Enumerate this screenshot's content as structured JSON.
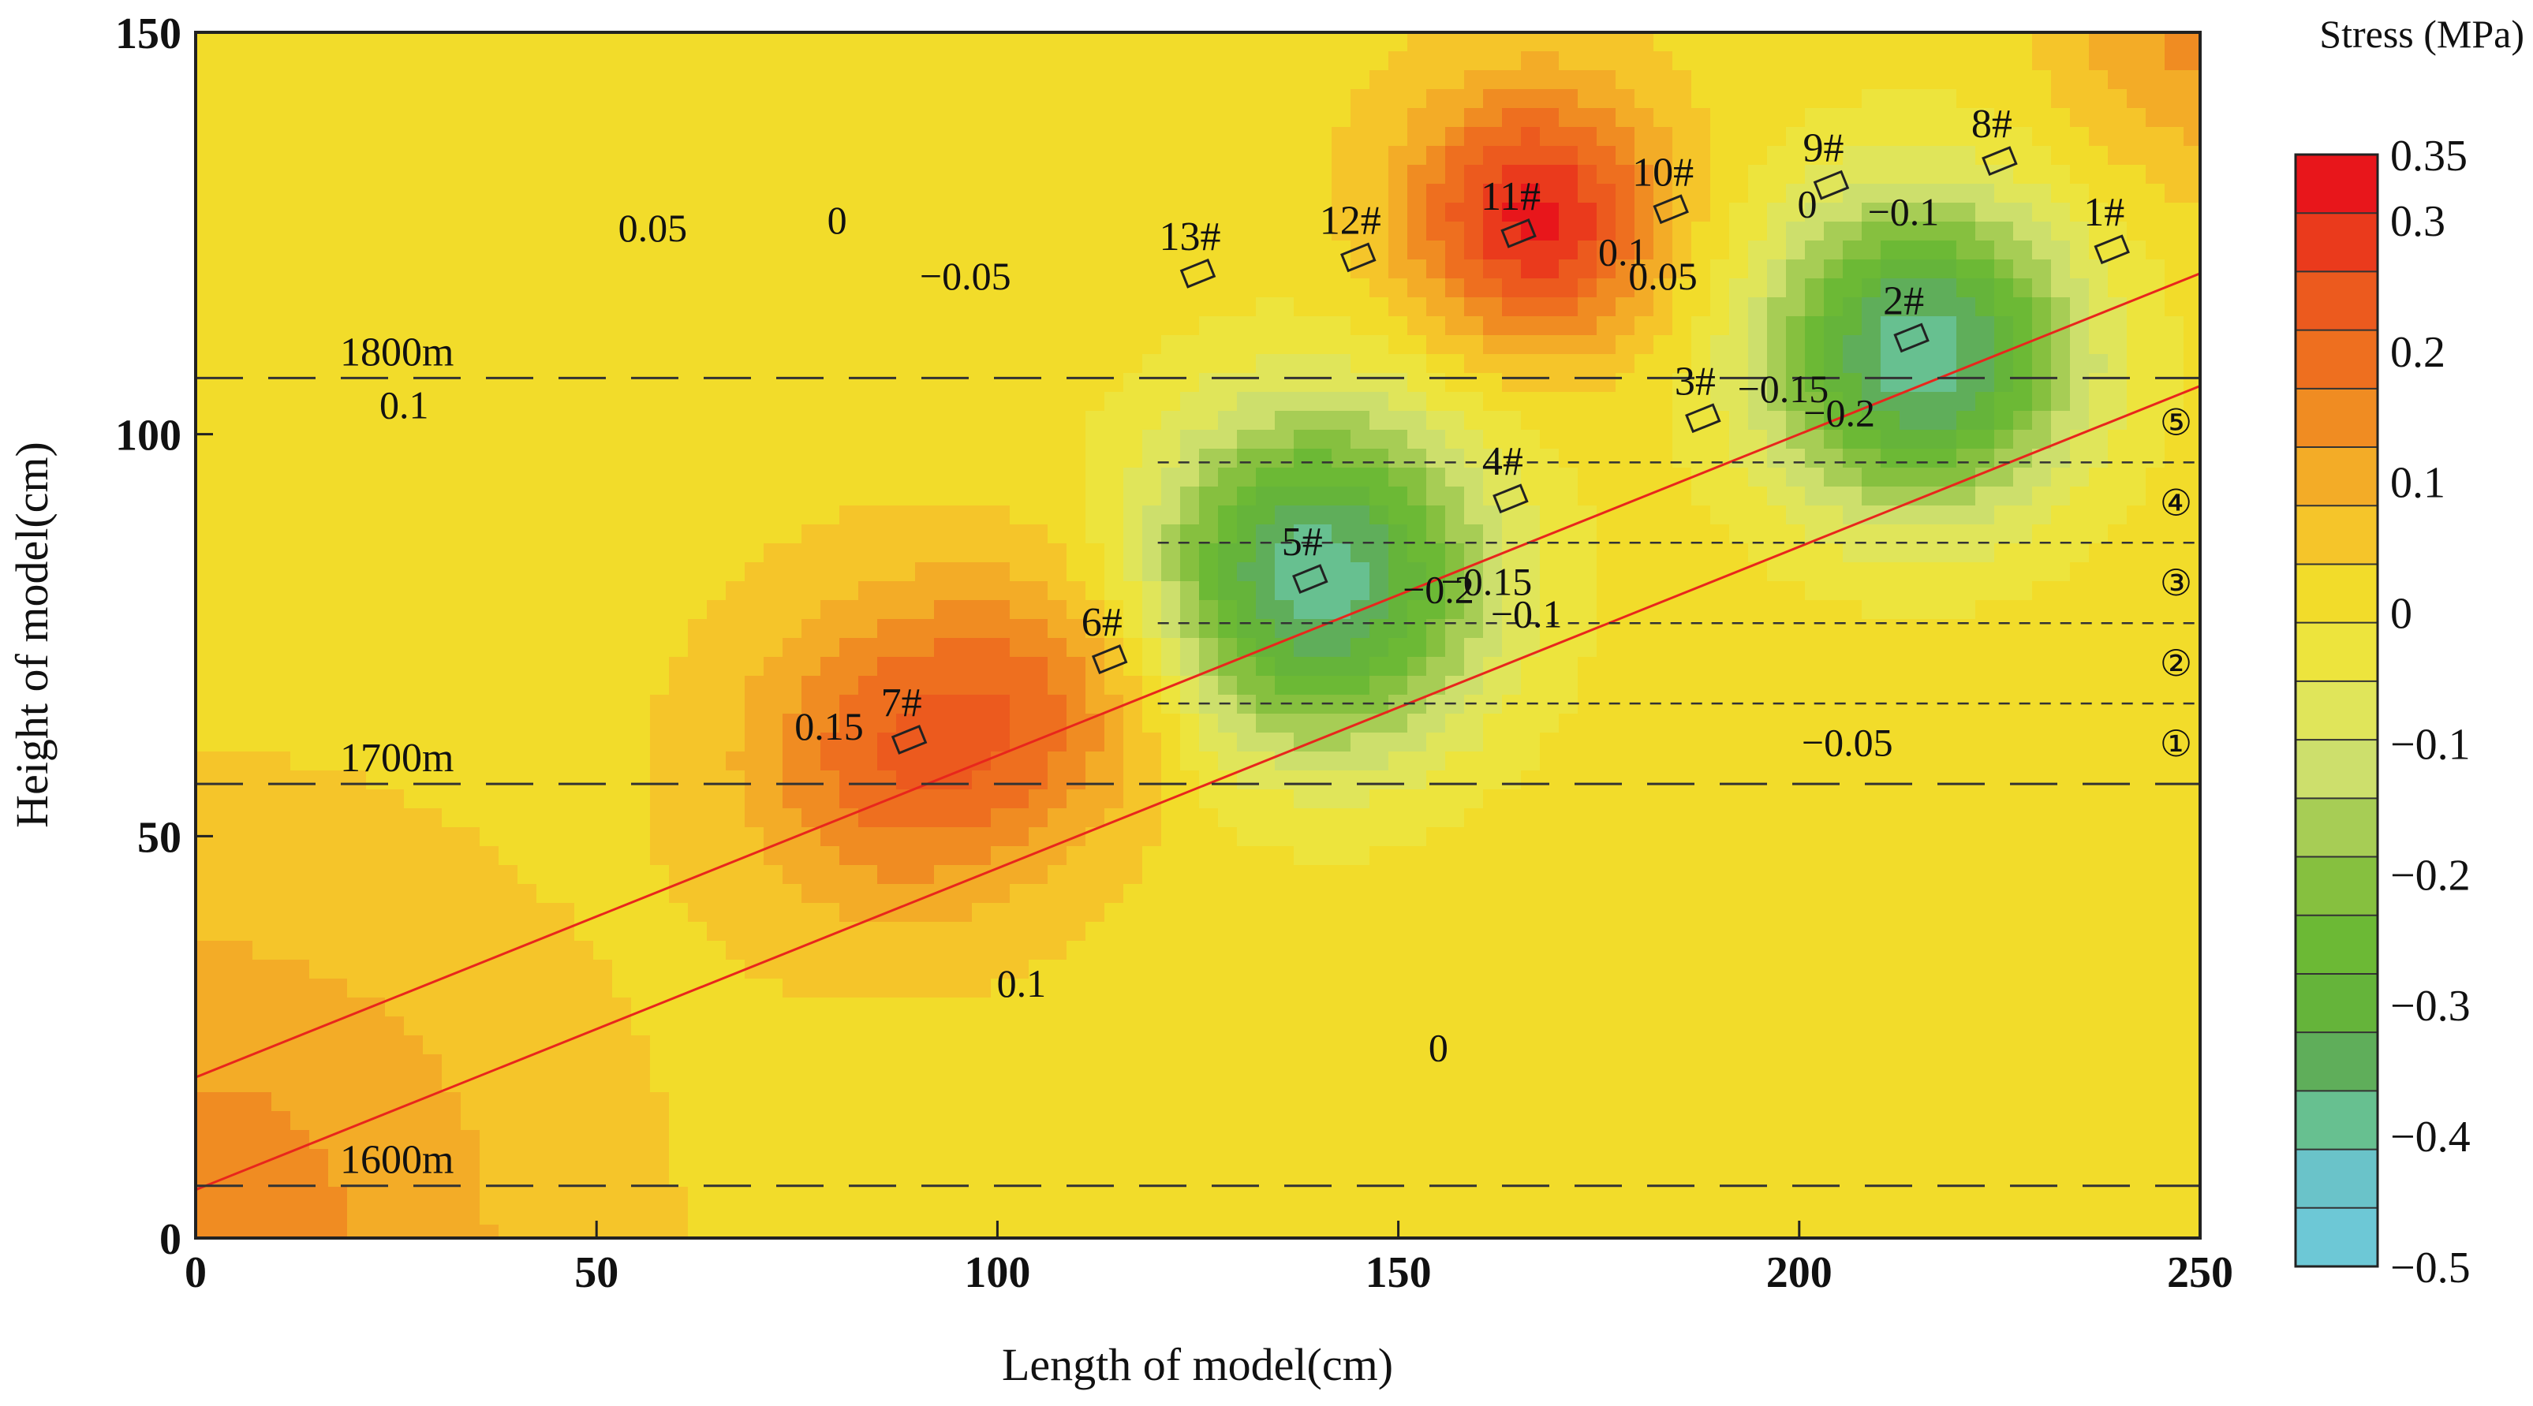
{
  "chart_data": {
    "type": "contour",
    "title": "",
    "xlabel": "Length of model(cm)",
    "ylabel": "Height of model(cm)",
    "xlim": [
      0,
      250
    ],
    "ylim": [
      0,
      150
    ],
    "x_ticks": [
      "0",
      "50",
      "100",
      "150",
      "200",
      "250"
    ],
    "y_ticks": [
      "0",
      "50",
      "100",
      "150"
    ],
    "colorbar": {
      "title": "Stress (MPa)",
      "labels": [
        "0.35",
        "0.3",
        "0.2",
        "0.1",
        "0",
        "−0.1",
        "−0.2",
        "−0.3",
        "−0.4",
        "−0.5"
      ],
      "levels": [
        0.35,
        0.3,
        0.2,
        0.1,
        0,
        -0.1,
        -0.2,
        -0.3,
        -0.4,
        -0.5
      ],
      "colors": [
        "#e8161b",
        "#ea3a1c",
        "#ec5a1e",
        "#ee6f1f",
        "#f08c22",
        "#f3ac27",
        "#f5c52a",
        "#f2dc2a",
        "#ede43d",
        "#e0e55a",
        "#cddf6c",
        "#a7cd55",
        "#86c03f",
        "#6cb935",
        "#65b43a",
        "#5fae5a",
        "#67c090",
        "#6ac3c9",
        "#6dc8d6"
      ]
    },
    "field_sources": [
      {
        "x": 0,
        "y": 0,
        "value": 0.13,
        "spread": 30
      },
      {
        "x": 88,
        "y": 60,
        "value": 0.18,
        "spread": 14
      },
      {
        "x": 108,
        "y": 68,
        "value": 0.12,
        "spread": 12
      },
      {
        "x": 167,
        "y": 127,
        "value": 0.3,
        "spread": 11
      },
      {
        "x": 140,
        "y": 82,
        "value": -0.42,
        "spread": 15
      },
      {
        "x": 215,
        "y": 110,
        "value": -0.42,
        "spread": 14
      },
      {
        "x": 250,
        "y": 150,
        "value": 0.12,
        "spread": 12
      }
    ],
    "contour_labels": [
      {
        "text": "0.05",
        "x": 57,
        "y": 124
      },
      {
        "text": "0",
        "x": 80,
        "y": 125
      },
      {
        "text": "−0.05",
        "x": 96,
        "y": 118
      },
      {
        "text": "0.1",
        "x": 26,
        "y": 102
      },
      {
        "text": "0.15",
        "x": 79,
        "y": 62
      },
      {
        "text": "0.1",
        "x": 103,
        "y": 30
      },
      {
        "text": "0",
        "x": 155,
        "y": 22
      },
      {
        "text": "−0.2",
        "x": 155,
        "y": 79
      },
      {
        "text": "−0.15",
        "x": 161,
        "y": 80
      },
      {
        "text": "−0.1",
        "x": 166,
        "y": 76
      },
      {
        "text": "−0.05",
        "x": 206,
        "y": 60
      },
      {
        "text": "0.1",
        "x": 178,
        "y": 121
      },
      {
        "text": "0.05",
        "x": 183,
        "y": 118
      },
      {
        "text": "0",
        "x": 201,
        "y": 127
      },
      {
        "text": "−0.1",
        "x": 213,
        "y": 126
      },
      {
        "text": "−0.15",
        "x": 198,
        "y": 104
      },
      {
        "text": "−0.2",
        "x": 205,
        "y": 101
      }
    ],
    "sensors": [
      {
        "label": "1#",
        "x": 239,
        "y": 123
      },
      {
        "label": "2#",
        "x": 214,
        "y": 112
      },
      {
        "label": "3#",
        "x": 188,
        "y": 102
      },
      {
        "label": "4#",
        "x": 164,
        "y": 92
      },
      {
        "label": "5#",
        "x": 139,
        "y": 82
      },
      {
        "label": "6#",
        "x": 114,
        "y": 72
      },
      {
        "label": "7#",
        "x": 89,
        "y": 62
      },
      {
        "label": "8#",
        "x": 225,
        "y": 134
      },
      {
        "label": "9#",
        "x": 204,
        "y": 131
      },
      {
        "label": "10#",
        "x": 184,
        "y": 128
      },
      {
        "label": "11#",
        "x": 165,
        "y": 125
      },
      {
        "label": "12#",
        "x": 145,
        "y": 122
      },
      {
        "label": "13#",
        "x": 125,
        "y": 120
      }
    ],
    "depth_lines": [
      {
        "label": "1800m",
        "y": 107
      },
      {
        "label": "1700m",
        "y": 56.5
      },
      {
        "label": "1600m",
        "y": 6.5
      }
    ],
    "layer_lines": [
      96.5,
      86.5,
      76.5,
      66.5
    ],
    "layer_labels": [
      "⑤",
      "④",
      "③",
      "②",
      "①"
    ],
    "seam_lines": [
      {
        "x1": 0,
        "y1": 20,
        "x2": 250,
        "y2": 120
      },
      {
        "x1": 0,
        "y1": 6,
        "x2": 250,
        "y2": 106
      }
    ]
  }
}
